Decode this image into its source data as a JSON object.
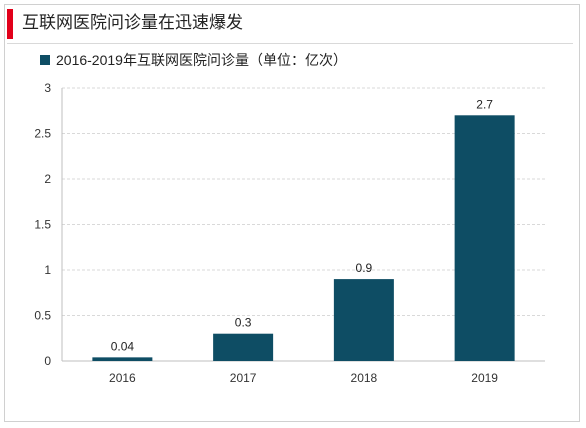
{
  "header": {
    "title": "互联网医院问诊量在迅速爆发",
    "accent_color": "#e2001a"
  },
  "chart_data": {
    "type": "bar",
    "title": "",
    "xlabel": "",
    "ylabel": "",
    "categories": [
      "2016",
      "2017",
      "2018",
      "2019"
    ],
    "series": [
      {
        "name": "2016-2019年互联网医院问诊量（单位：亿次）",
        "values": [
          0.04,
          0.3,
          0.9,
          2.7
        ]
      }
    ],
    "data_labels": [
      "0.04",
      "0.3",
      "0.9",
      "2.7"
    ],
    "ylim": [
      0,
      3
    ],
    "yticks": [
      0,
      0.5,
      1,
      1.5,
      2,
      2.5,
      3
    ],
    "ytick_labels": [
      "0",
      "0.5",
      "1",
      "1.5",
      "2",
      "2.5",
      "3"
    ],
    "grid": true,
    "legend_position": "top-left",
    "bar_color": "#0e4d64",
    "grid_color": "#d9d9d9"
  }
}
